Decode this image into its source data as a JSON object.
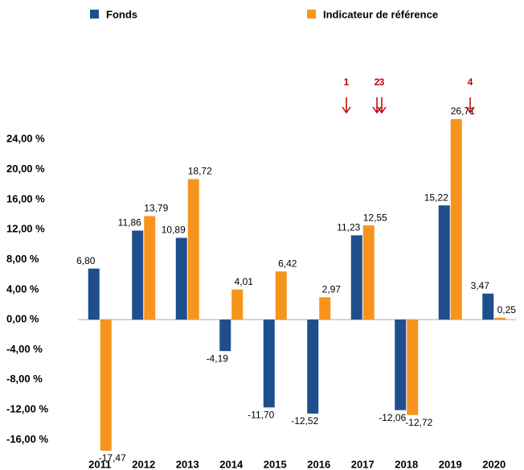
{
  "chart_data": {
    "type": "bar",
    "categories": [
      "2011",
      "2012",
      "2013",
      "2014",
      "2015",
      "2016",
      "2017",
      "2018",
      "2019",
      "2020"
    ],
    "series": [
      {
        "name": "Fonds",
        "color": "#1f4e8c",
        "values": [
          6.8,
          11.86,
          10.89,
          -4.19,
          -11.7,
          -12.52,
          11.23,
          -12.06,
          15.22,
          3.47
        ],
        "value_labels": [
          "6,80",
          "11,86",
          "10,89",
          "-4,19",
          "-11,70",
          "-12,52",
          "11,23",
          "-12,06",
          "15,22",
          "3,47"
        ]
      },
      {
        "name": "Indicateur de référence",
        "color": "#f7941d",
        "values": [
          -17.47,
          13.79,
          18.72,
          4.01,
          6.42,
          2.97,
          12.55,
          -12.72,
          26.71,
          0.25
        ],
        "value_labels": [
          "-17,47",
          "13,79",
          "18,72",
          "4,01",
          "6,42",
          "2,97",
          "12,55",
          "-12,72",
          "26,71",
          "0,25"
        ]
      }
    ],
    "ylim": [
      -18,
      28
    ],
    "yticks": [
      {
        "value": -16,
        "label": "-16,00 %"
      },
      {
        "value": -12,
        "label": "-12,00 %"
      },
      {
        "value": -8,
        "label": "-8,00 %"
      },
      {
        "value": -4,
        "label": "-4,00 %"
      },
      {
        "value": 0,
        "label": "0,00 %"
      },
      {
        "value": 4,
        "label": "4,00 %"
      },
      {
        "value": 8,
        "label": "8,00 %"
      },
      {
        "value": 12,
        "label": "12,00 %"
      },
      {
        "value": 16,
        "label": "16,00 %"
      },
      {
        "value": 20,
        "label": "20,00 %"
      },
      {
        "value": 24,
        "label": "24,00 %"
      }
    ],
    "annotations": [
      "1",
      "2",
      "3",
      "4"
    ],
    "grid": false
  }
}
